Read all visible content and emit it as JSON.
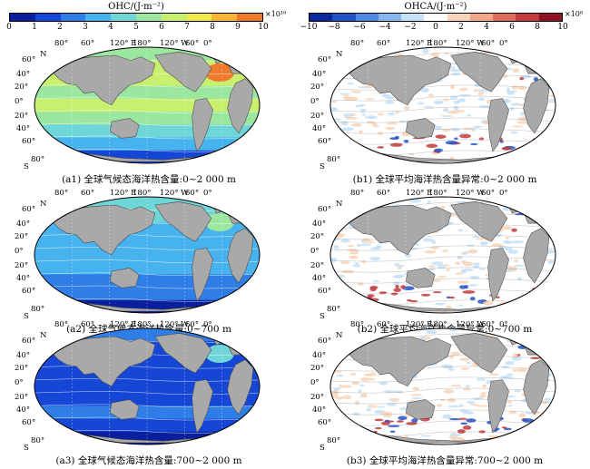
{
  "colorbar_left": {
    "title": "OHC/(J·m⁻²)",
    "multiplier": "×10¹⁰",
    "ticks": [
      "0",
      "1",
      "2",
      "3",
      "4",
      "5",
      "6",
      "7",
      "8",
      "9",
      "10"
    ],
    "colors": [
      "#0a1f9e",
      "#1646d6",
      "#2f7ee8",
      "#47b3ee",
      "#6fd6d8",
      "#9be79f",
      "#c8ef6e",
      "#f0e94e",
      "#f7b438",
      "#ef7a2c"
    ]
  },
  "colorbar_right": {
    "title": "OHCA/(J·m⁻²)",
    "multiplier": "×10⁸",
    "ticks": [
      "−10",
      "−8",
      "−6",
      "−4",
      "−2",
      "0",
      "2",
      "4",
      "6",
      "8",
      "10"
    ],
    "colors": [
      "#0b2a9c",
      "#2353c9",
      "#4f88e0",
      "#86b7ee",
      "#c4e1f7",
      "#ffffff",
      "#f8d5b8",
      "#f1a788",
      "#e06e5d",
      "#c33a3c",
      "#8c1424"
    ]
  },
  "map_labels": {
    "lon": [
      "80°",
      "60°",
      "120° E",
      "180°",
      "120° W",
      "60°",
      "0°"
    ],
    "lat": [
      "60°",
      "40°",
      "20°",
      "0°",
      "20°",
      "40°",
      "60°"
    ],
    "north": "N",
    "south": "S",
    "south_pole_lat": "80°"
  },
  "panels": [
    {
      "id": "a1",
      "caption": "(a1) 全球气候态海洋热含量:0~2 000 m"
    },
    {
      "id": "b1",
      "caption": "(b1) 全球平均海洋热含量异常:0~2 000 m"
    },
    {
      "id": "a2",
      "caption": "(a2) 全球气候态海洋热含量:0~700 m"
    },
    {
      "id": "b2",
      "caption": "(b2) 全球平均海洋热含量异常:0~700 m"
    },
    {
      "id": "a3",
      "caption": "(a3) 全球气候态海洋热含量:700~2 000 m"
    },
    {
      "id": "b3",
      "caption": "(b3) 全球平均海洋热含量异常:700~2 000 m"
    }
  ]
}
